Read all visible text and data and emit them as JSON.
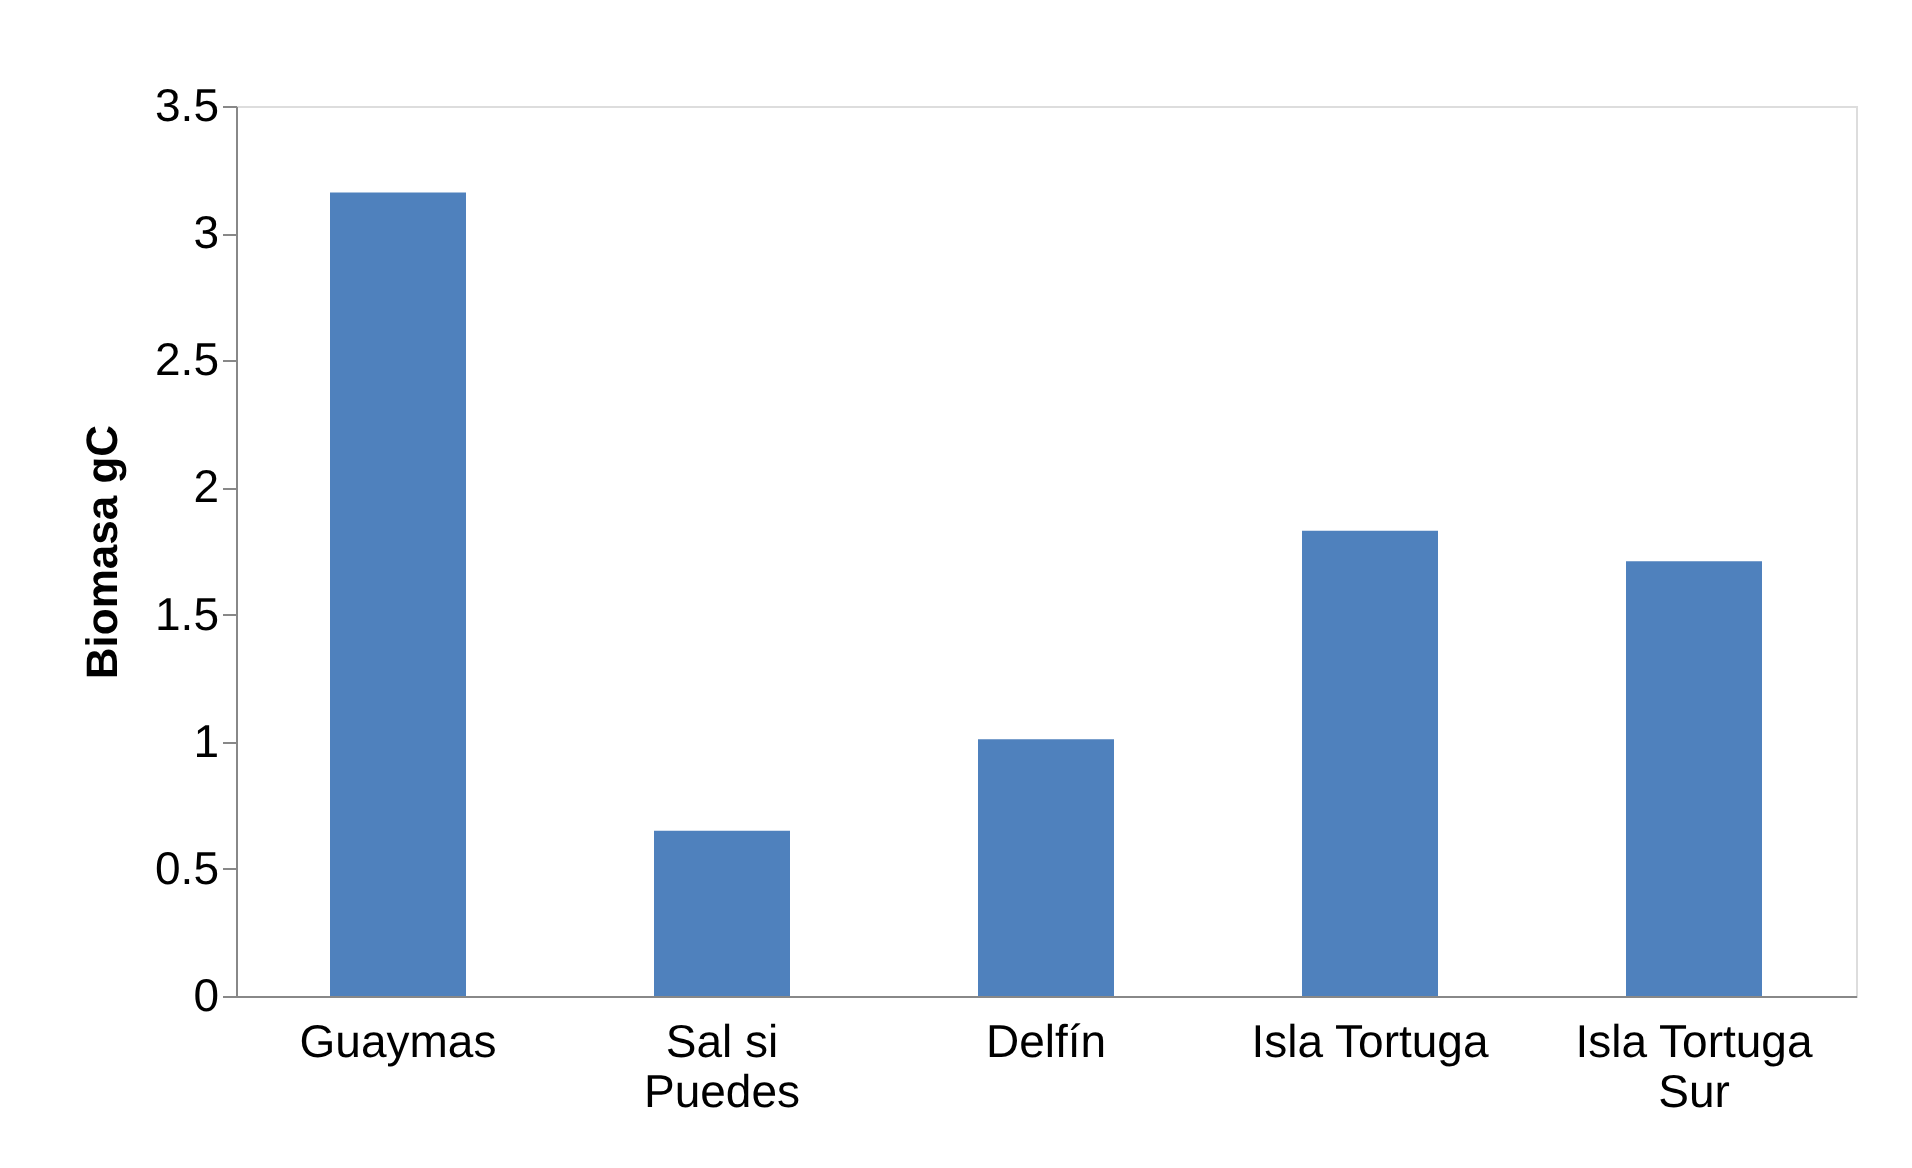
{
  "chart_data": {
    "type": "bar",
    "ylabel": "Biomasa gC",
    "categories": [
      "Guaymas",
      "Sal si Puedes",
      "Delfín",
      "Isla Tortuga",
      "Isla Tortuga Sur"
    ],
    "values": [
      3.16,
      0.65,
      1.01,
      1.83,
      1.71
    ],
    "color": "#4f81bd",
    "ylim": [
      0,
      3.5
    ],
    "yticks": [
      0,
      0.5,
      1,
      1.5,
      2,
      2.5,
      3,
      3.5
    ],
    "grid": false
  }
}
